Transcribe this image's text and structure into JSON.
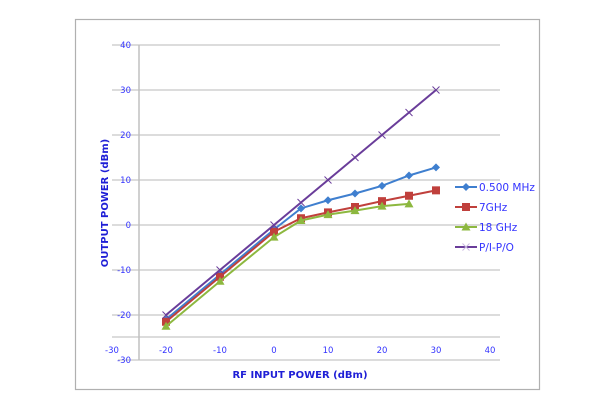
{
  "chart_data": {
    "type": "line",
    "title": "",
    "xlabel": "RF INPUT POWER (dBm)",
    "ylabel": "OUTPUT POWER (dBm)",
    "xlim": [
      -30,
      40
    ],
    "ylim": [
      -30,
      40
    ],
    "x_ticks": [
      -30,
      -20,
      -10,
      0,
      10,
      20,
      30,
      40
    ],
    "y_ticks": [
      40,
      30,
      20,
      10,
      0,
      -10,
      -20,
      -30
    ],
    "grid": true,
    "legend_position": "right",
    "series": [
      {
        "name": "0.500 MHz",
        "color": "#3f7fcf",
        "marker": "diamond",
        "x": [
          -20,
          -10,
          0,
          5,
          10,
          15,
          20,
          25,
          30
        ],
        "values": [
          -21,
          -11,
          -1,
          3.7,
          5.5,
          7,
          8.7,
          11,
          12.8
        ]
      },
      {
        "name": "7GHz",
        "color": "#c0403c",
        "marker": "square",
        "x": [
          -20,
          -10,
          0,
          5,
          10,
          15,
          20,
          25,
          30
        ],
        "values": [
          -21.5,
          -11.5,
          -1.5,
          1.5,
          2.8,
          4,
          5.3,
          6.5,
          7.7
        ]
      },
      {
        "name": "18 GHz",
        "color": "#8db83f",
        "marker": "triangle",
        "x": [
          -20,
          -10,
          0,
          5,
          10,
          15,
          20,
          25
        ],
        "values": [
          -22.5,
          -12.5,
          -2.7,
          1,
          2.3,
          3.2,
          4.2,
          4.7
        ]
      },
      {
        "name": "P/I-P/O",
        "color": "#6a3d9a",
        "marker": "x",
        "x": [
          -20,
          -10,
          0,
          5,
          10,
          15,
          20,
          25,
          30
        ],
        "values": [
          -20,
          -10,
          0,
          5,
          10,
          15,
          20,
          25,
          30
        ]
      }
    ]
  },
  "colors": {
    "tick_text": "#3333ff",
    "axis_title": "#1f1fd6",
    "grid": "#c8c8c8",
    "frame": "#b0b0b0"
  }
}
